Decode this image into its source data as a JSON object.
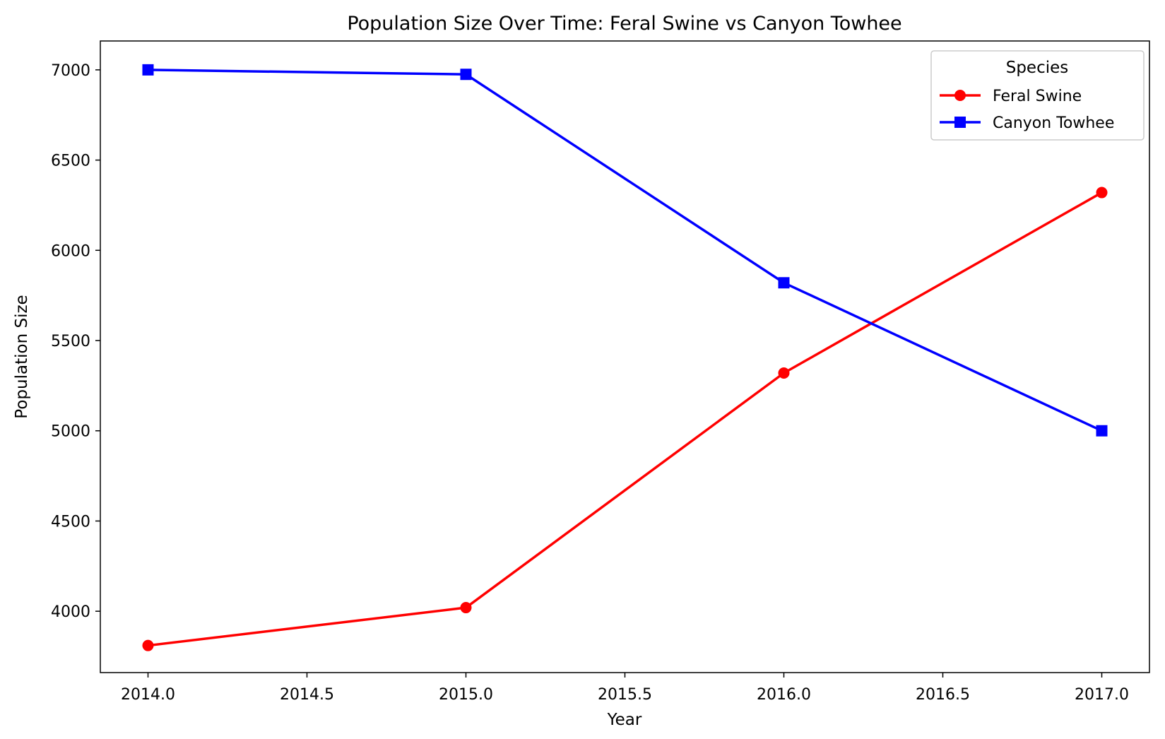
{
  "chart_data": {
    "type": "line",
    "title": "Population Size Over Time: Feral Swine vs Canyon Towhee",
    "xlabel": "Year",
    "ylabel": "Population Size",
    "xlim": [
      2013.85,
      2017.15
    ],
    "ylim": [
      3660,
      7160
    ],
    "xticks": [
      2014.0,
      2014.5,
      2015.0,
      2015.5,
      2016.0,
      2016.5,
      2017.0
    ],
    "xtick_labels": [
      "2014.0",
      "2014.5",
      "2015.0",
      "2015.5",
      "2016.0",
      "2016.5",
      "2017.0"
    ],
    "yticks": [
      4000,
      4500,
      5000,
      5500,
      6000,
      6500,
      7000
    ],
    "ytick_labels": [
      "4000",
      "4500",
      "5000",
      "5500",
      "6000",
      "6500",
      "7000"
    ],
    "grid": false,
    "legend": {
      "title": "Species",
      "placement": "upper right"
    },
    "x": [
      2014,
      2015,
      2016,
      2017
    ],
    "series": [
      {
        "name": "Feral Swine",
        "color": "#ff0000",
        "marker": "circle",
        "values": [
          3810,
          4020,
          5320,
          6320
        ]
      },
      {
        "name": "Canyon Towhee",
        "color": "#0000ff",
        "marker": "square",
        "values": [
          7000,
          6975,
          5820,
          5000
        ]
      }
    ]
  }
}
